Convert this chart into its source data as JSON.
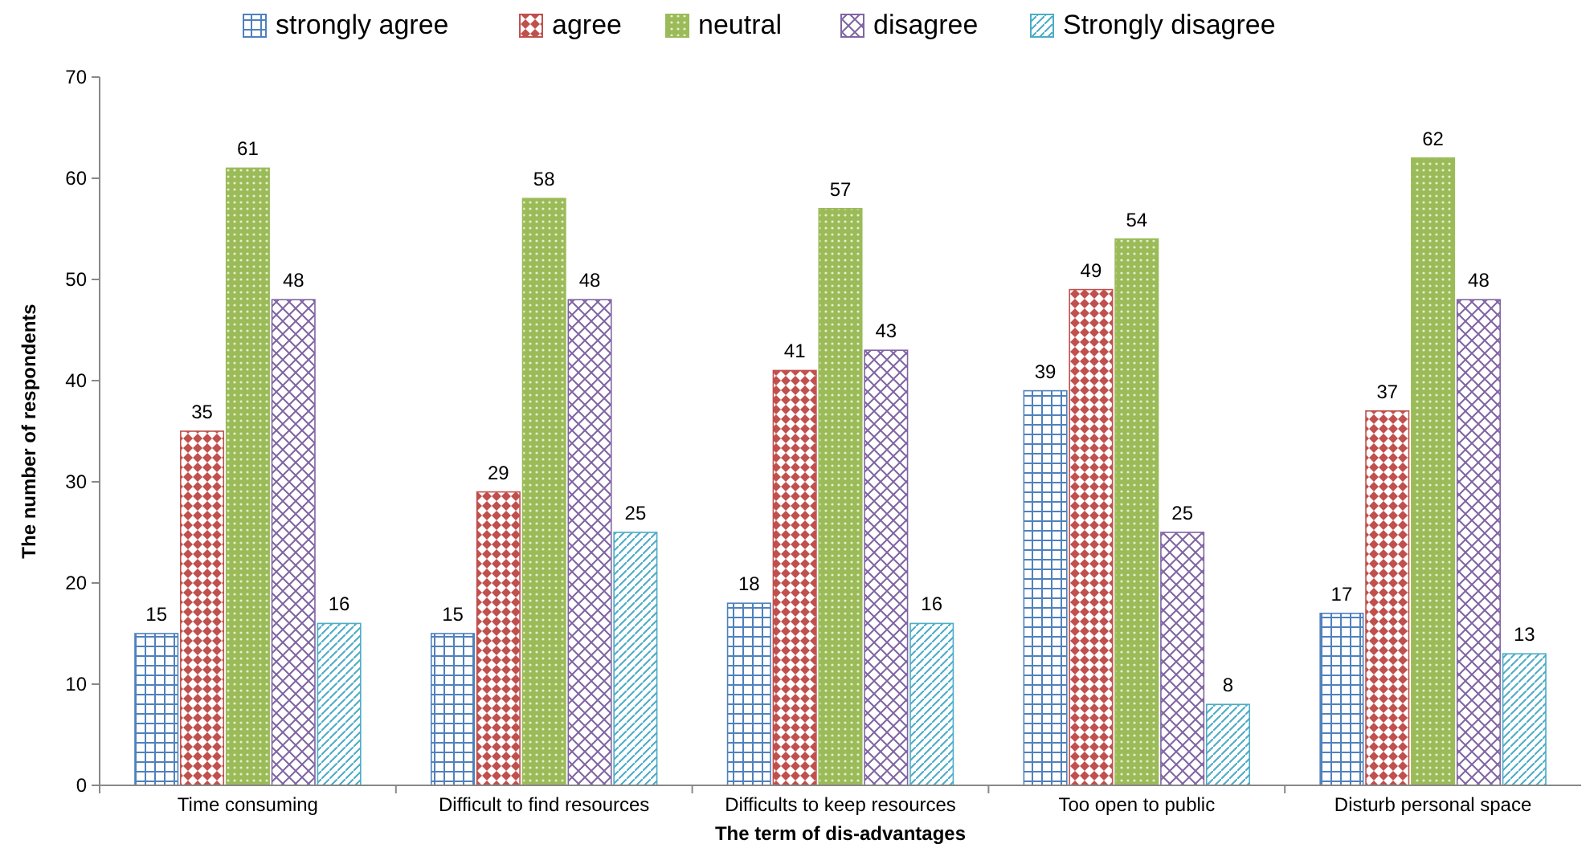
{
  "chart_data": {
    "type": "bar",
    "xlabel": "The term of dis-advantages",
    "ylabel": "The number of respondents",
    "categories": [
      "Time consuming",
      "Difficult to find resources",
      "Difficults to keep resources",
      "Too open to public",
      "Disturb personal space"
    ],
    "series": [
      {
        "name": "strongly agree",
        "color": "#4f81bd",
        "values": [
          15,
          15,
          18,
          39,
          17
        ]
      },
      {
        "name": "agree",
        "color": "#c0504d",
        "values": [
          35,
          29,
          41,
          49,
          37
        ]
      },
      {
        "name": "neutral",
        "color": "#9bbb59",
        "values": [
          61,
          58,
          57,
          54,
          62
        ]
      },
      {
        "name": "disagree",
        "color": "#8064a2",
        "values": [
          48,
          48,
          43,
          25,
          48
        ]
      },
      {
        "name": "Strongly disagree",
        "color": "#4bacc6",
        "values": [
          16,
          25,
          16,
          8,
          13
        ]
      }
    ],
    "ylim": [
      0,
      70
    ],
    "yticks": [
      0,
      10,
      20,
      30,
      40,
      50,
      60,
      70
    ],
    "grid": false,
    "legend": "top",
    "data_labels": true
  }
}
